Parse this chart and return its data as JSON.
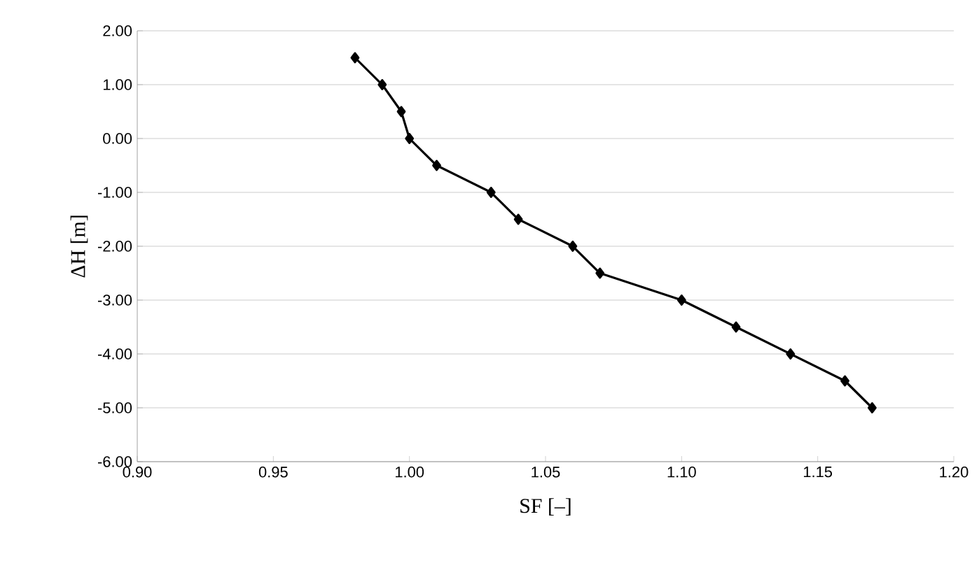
{
  "chart_data": {
    "type": "line",
    "xlabel": "SF [–]",
    "ylabel": "ΔH [m]",
    "x": [
      0.98,
      0.99,
      0.997,
      1.0,
      1.01,
      1.03,
      1.04,
      1.06,
      1.07,
      1.1,
      1.12,
      1.14,
      1.16,
      1.17
    ],
    "series": [
      {
        "color": "#000000",
        "values": [
          1.5,
          1.0,
          0.5,
          0.0,
          -0.5,
          -1.0,
          -1.5,
          -2.0,
          -2.5,
          -3.0,
          -3.5,
          -4.0,
          -4.5,
          -5.0
        ]
      }
    ],
    "marker": "diamond",
    "line_style": "solid",
    "grid": "y",
    "xlim": [
      0.9,
      1.2
    ],
    "ylim": [
      -6,
      2
    ],
    "xticks": [
      {
        "value": 0.9,
        "label": "0.90"
      },
      {
        "value": 0.95,
        "label": "0.95"
      },
      {
        "value": 1.0,
        "label": "1.00"
      },
      {
        "value": 1.05,
        "label": "1.05"
      },
      {
        "value": 1.1,
        "label": "1.10"
      },
      {
        "value": 1.15,
        "label": "1.15"
      },
      {
        "value": 1.2,
        "label": "1.20"
      }
    ],
    "yticks": [
      {
        "value": -6,
        "label": "-6.00"
      },
      {
        "value": -5,
        "label": "-5.00"
      },
      {
        "value": -4,
        "label": "-4.00"
      },
      {
        "value": -3,
        "label": "-3.00"
      },
      {
        "value": -2,
        "label": "-2.00"
      },
      {
        "value": -1,
        "label": "-1.00"
      },
      {
        "value": 0,
        "label": "0.00"
      },
      {
        "value": 1,
        "label": "1.00"
      },
      {
        "value": 2,
        "label": "2.00"
      }
    ]
  }
}
